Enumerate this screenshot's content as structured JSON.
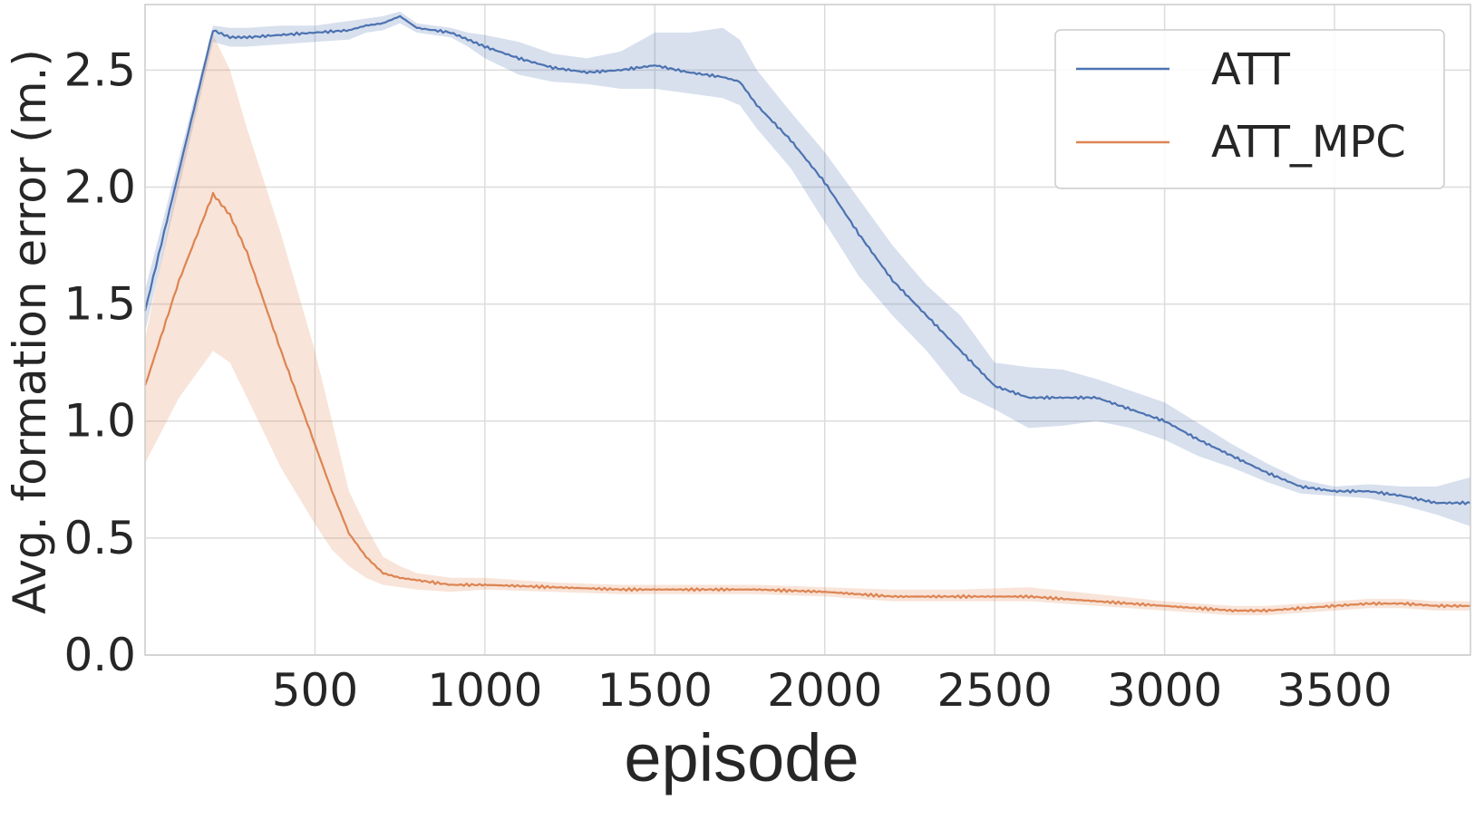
{
  "colors": {
    "att": "#4c72b0",
    "att_mpc": "#dd8452",
    "grid": "#dcdcdc",
    "frame": "#cccccc",
    "text": "#262626"
  },
  "chart_data": {
    "type": "line",
    "title": "",
    "xlabel": "episode",
    "ylabel": "Avg. formation error (m.)",
    "xlim": [
      0,
      3900
    ],
    "ylim": [
      0,
      2.78
    ],
    "xticks": [
      500,
      1000,
      1500,
      2000,
      2500,
      3000,
      3500
    ],
    "xtick_labels": [
      "500",
      "1000",
      "1500",
      "2000",
      "2500",
      "3000",
      "3500"
    ],
    "yticks": [
      0,
      0.5,
      1,
      1.5,
      2,
      2.5
    ],
    "ytick_labels": [
      "0.0",
      "0.5",
      "1.0",
      "1.5",
      "2.0",
      "2.5"
    ],
    "grid": true,
    "legend_position": "top-right",
    "series": [
      {
        "name": "ATT",
        "color": "#4c72b0",
        "x": [
          0,
          200,
          250,
          300,
          400,
          500,
          600,
          650,
          700,
          750,
          800,
          900,
          950,
          1000,
          1100,
          1200,
          1300,
          1400,
          1500,
          1600,
          1700,
          1750,
          1800,
          1900,
          2000,
          2100,
          2200,
          2300,
          2400,
          2500,
          2600,
          2700,
          2800,
          2900,
          3000,
          3100,
          3200,
          3300,
          3400,
          3500,
          3600,
          3700,
          3800,
          3900
        ],
        "y": [
          1.47,
          2.67,
          2.64,
          2.64,
          2.65,
          2.66,
          2.67,
          2.69,
          2.7,
          2.73,
          2.68,
          2.66,
          2.63,
          2.6,
          2.55,
          2.51,
          2.49,
          2.5,
          2.52,
          2.49,
          2.47,
          2.45,
          2.35,
          2.2,
          2.02,
          1.8,
          1.6,
          1.45,
          1.3,
          1.15,
          1.1,
          1.1,
          1.1,
          1.05,
          1.0,
          0.92,
          0.85,
          0.78,
          0.72,
          0.7,
          0.7,
          0.68,
          0.65,
          0.65
        ],
        "lower": [
          1.38,
          2.62,
          2.6,
          2.6,
          2.61,
          2.62,
          2.63,
          2.66,
          2.67,
          2.7,
          2.66,
          2.64,
          2.6,
          2.55,
          2.48,
          2.45,
          2.44,
          2.42,
          2.42,
          2.4,
          2.38,
          2.35,
          2.25,
          2.08,
          1.85,
          1.62,
          1.45,
          1.3,
          1.12,
          1.05,
          0.97,
          0.98,
          1.0,
          0.97,
          0.92,
          0.85,
          0.8,
          0.74,
          0.69,
          0.68,
          0.67,
          0.64,
          0.6,
          0.55
        ],
        "upper": [
          1.56,
          2.69,
          2.68,
          2.68,
          2.69,
          2.69,
          2.71,
          2.72,
          2.73,
          2.75,
          2.7,
          2.68,
          2.66,
          2.65,
          2.62,
          2.57,
          2.55,
          2.58,
          2.66,
          2.66,
          2.68,
          2.63,
          2.5,
          2.32,
          2.15,
          1.95,
          1.75,
          1.58,
          1.45,
          1.25,
          1.23,
          1.22,
          1.18,
          1.13,
          1.08,
          0.99,
          0.9,
          0.82,
          0.75,
          0.72,
          0.73,
          0.72,
          0.72,
          0.76
        ]
      },
      {
        "name": "ATT_MPC",
        "color": "#dd8452",
        "x": [
          0,
          100,
          200,
          250,
          300,
          400,
          500,
          550,
          600,
          650,
          700,
          750,
          800,
          900,
          1000,
          1200,
          1400,
          1600,
          1800,
          2000,
          2200,
          2400,
          2600,
          2800,
          3000,
          3200,
          3300,
          3400,
          3500,
          3600,
          3700,
          3800,
          3900
        ],
        "y": [
          1.15,
          1.6,
          1.97,
          1.88,
          1.72,
          1.3,
          0.9,
          0.7,
          0.52,
          0.42,
          0.35,
          0.33,
          0.32,
          0.3,
          0.3,
          0.29,
          0.28,
          0.28,
          0.28,
          0.27,
          0.25,
          0.25,
          0.25,
          0.23,
          0.21,
          0.19,
          0.19,
          0.2,
          0.21,
          0.22,
          0.22,
          0.21,
          0.21
        ],
        "lower": [
          0.82,
          1.1,
          1.3,
          1.25,
          1.1,
          0.8,
          0.56,
          0.45,
          0.38,
          0.33,
          0.3,
          0.29,
          0.28,
          0.27,
          0.28,
          0.27,
          0.26,
          0.26,
          0.26,
          0.25,
          0.23,
          0.23,
          0.23,
          0.21,
          0.19,
          0.17,
          0.17,
          0.18,
          0.19,
          0.2,
          0.2,
          0.19,
          0.19
        ],
        "upper": [
          1.35,
          2.05,
          2.65,
          2.5,
          2.25,
          1.8,
          1.3,
          1.0,
          0.7,
          0.55,
          0.42,
          0.38,
          0.35,
          0.33,
          0.33,
          0.31,
          0.3,
          0.3,
          0.3,
          0.29,
          0.28,
          0.28,
          0.29,
          0.26,
          0.23,
          0.21,
          0.21,
          0.22,
          0.23,
          0.24,
          0.24,
          0.23,
          0.23
        ]
      }
    ]
  }
}
